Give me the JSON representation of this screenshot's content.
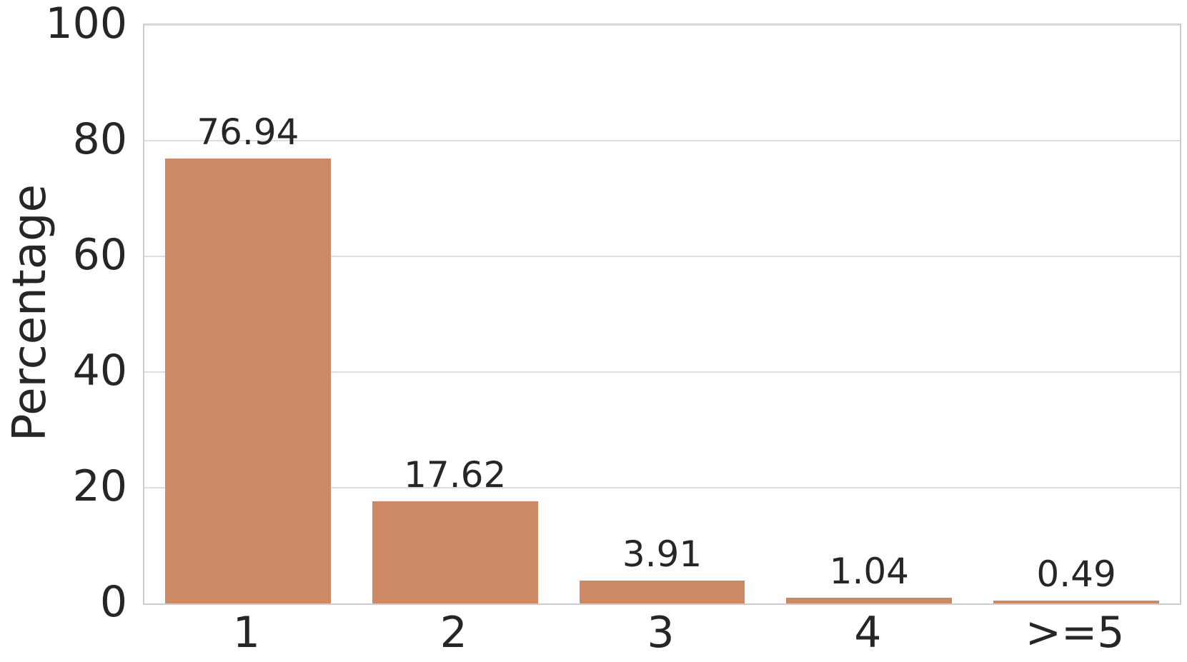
{
  "chart_data": {
    "type": "bar",
    "categories": [
      "1",
      "2",
      "3",
      "4",
      ">=5"
    ],
    "values": [
      76.94,
      17.62,
      3.91,
      1.04,
      0.49
    ],
    "value_labels": [
      "76.94",
      "17.62",
      "3.91",
      "1.04",
      "0.49"
    ],
    "title": "",
    "xlabel": "",
    "ylabel": "Percentage",
    "ylim": [
      0,
      100
    ],
    "yticks": [
      0,
      20,
      40,
      60,
      80,
      100
    ],
    "grid": "horizontal",
    "legend": "none",
    "colors": {
      "bar_fill": "#cd8963",
      "gridline": "#dddddd",
      "spine": "#cccccc",
      "text": "#262626",
      "background": "#ffffff"
    }
  }
}
